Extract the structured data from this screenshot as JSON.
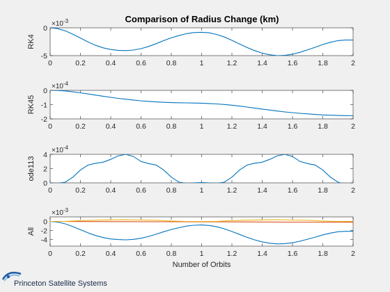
{
  "figure": {
    "title": "Comparison of Radius Change (km)",
    "background": "#f0f0f0",
    "axes_background": "#ffffff",
    "line_color": "#0072bd",
    "second_line_color": "#d95319",
    "third_line_color": "#edb120"
  },
  "logo": {
    "text": "Princeton Satellite Systems",
    "icon": "orbit-swoosh-icon"
  },
  "chart_data": [
    {
      "type": "line",
      "ylabel": "RK4",
      "exponent_label": "×10",
      "exponent_power": "-3",
      "xlim": [
        0,
        2
      ],
      "ylim": [
        -5,
        0
      ],
      "xticks": [
        0,
        0.2,
        0.4,
        0.6,
        0.8,
        1,
        1.2,
        1.4,
        1.6,
        1.8,
        2
      ],
      "xtick_labels": [
        "0",
        "0.2",
        "0.4",
        "0.6",
        "0.8",
        "1",
        "1.2",
        "1.4",
        "1.6",
        "1.8",
        "2"
      ],
      "yticks": [
        -5,
        0
      ],
      "ytick_labels": [
        "-5",
        "0"
      ],
      "series": [
        {
          "x": [
            0,
            0.05,
            0.1,
            0.15,
            0.2,
            0.25,
            0.3,
            0.35,
            0.4,
            0.45,
            0.5,
            0.55,
            0.6,
            0.65,
            0.7,
            0.75,
            0.8,
            0.85,
            0.9,
            0.95,
            1.0,
            1.05,
            1.1,
            1.15,
            1.2,
            1.25,
            1.3,
            1.35,
            1.4,
            1.45,
            1.5,
            1.55,
            1.6,
            1.65,
            1.7,
            1.75,
            1.8,
            1.85,
            1.9,
            1.95,
            2.0
          ],
          "y": [
            0,
            -0.15,
            -0.55,
            -1.15,
            -1.85,
            -2.55,
            -3.15,
            -3.6,
            -3.9,
            -4.05,
            -4.1,
            -4.0,
            -3.75,
            -3.35,
            -2.85,
            -2.3,
            -1.8,
            -1.4,
            -1.05,
            -0.85,
            -0.8,
            -0.9,
            -1.2,
            -1.65,
            -2.25,
            -2.9,
            -3.55,
            -4.1,
            -4.55,
            -4.85,
            -5.0,
            -4.95,
            -4.75,
            -4.4,
            -3.95,
            -3.5,
            -3.0,
            -2.6,
            -2.3,
            -2.2,
            -2.2
          ]
        }
      ]
    },
    {
      "type": "line",
      "ylabel": "RK45",
      "exponent_label": "×10",
      "exponent_power": "-4",
      "xlim": [
        0,
        2
      ],
      "ylim": [
        -2,
        0
      ],
      "xticks": [
        0,
        0.2,
        0.4,
        0.6,
        0.8,
        1,
        1.2,
        1.4,
        1.6,
        1.8,
        2
      ],
      "xtick_labels": [
        "0",
        "0.2",
        "0.4",
        "0.6",
        "0.8",
        "1",
        "1.2",
        "1.4",
        "1.6",
        "1.8",
        "2"
      ],
      "yticks": [
        -2,
        -1,
        0
      ],
      "ytick_labels": [
        "-2",
        "-1",
        "0"
      ],
      "series": [
        {
          "x": [
            0,
            0.05,
            0.1,
            0.15,
            0.2,
            0.25,
            0.3,
            0.35,
            0.4,
            0.45,
            0.5,
            0.55,
            0.6,
            0.65,
            0.7,
            0.75,
            0.8,
            0.85,
            0.9,
            0.95,
            1.0,
            1.05,
            1.1,
            1.15,
            1.2,
            1.25,
            1.3,
            1.35,
            1.4,
            1.45,
            1.5,
            1.55,
            1.6,
            1.65,
            1.7,
            1.75,
            1.8,
            1.85,
            1.9,
            1.95,
            2.0
          ],
          "y": [
            0,
            -0.01,
            -0.04,
            -0.1,
            -0.17,
            -0.25,
            -0.33,
            -0.41,
            -0.49,
            -0.56,
            -0.62,
            -0.68,
            -0.73,
            -0.77,
            -0.81,
            -0.84,
            -0.86,
            -0.87,
            -0.88,
            -0.89,
            -0.9,
            -0.92,
            -0.95,
            -0.99,
            -1.04,
            -1.1,
            -1.17,
            -1.24,
            -1.31,
            -1.38,
            -1.45,
            -1.51,
            -1.56,
            -1.61,
            -1.65,
            -1.69,
            -1.72,
            -1.74,
            -1.76,
            -1.77,
            -1.78
          ]
        }
      ]
    },
    {
      "type": "line",
      "ylabel": "ode113",
      "exponent_label": "×10",
      "exponent_power": "-4",
      "xlim": [
        0,
        2
      ],
      "ylim": [
        0,
        4
      ],
      "xticks": [
        0,
        0.2,
        0.4,
        0.6,
        0.8,
        1,
        1.2,
        1.4,
        1.6,
        1.8,
        2
      ],
      "xtick_labels": [
        "0",
        "0.2",
        "0.4",
        "0.6",
        "0.8",
        "1",
        "1.2",
        "1.4",
        "1.6",
        "1.8",
        "2"
      ],
      "yticks": [
        0,
        2,
        4
      ],
      "ytick_labels": [
        "0",
        "2",
        "4"
      ],
      "series": [
        {
          "x": [
            0,
            0.05,
            0.1,
            0.15,
            0.2,
            0.25,
            0.3,
            0.35,
            0.4,
            0.45,
            0.5,
            0.55,
            0.6,
            0.65,
            0.7,
            0.75,
            0.8,
            0.85,
            0.9,
            0.95,
            1.0,
            1.05,
            1.1,
            1.15,
            1.2,
            1.25,
            1.3,
            1.35,
            1.4,
            1.45,
            1.5,
            1.55,
            1.6,
            1.65,
            1.7,
            1.75,
            1.8,
            1.85,
            1.9,
            1.95,
            2.0
          ],
          "y": [
            0,
            -0.05,
            0.1,
            0.8,
            1.8,
            2.5,
            2.75,
            2.9,
            3.3,
            3.8,
            4.0,
            3.7,
            3.0,
            2.7,
            2.5,
            1.8,
            0.8,
            0.1,
            -0.05,
            0.0,
            0.05,
            0.0,
            -0.05,
            0.1,
            0.8,
            1.8,
            2.5,
            2.75,
            2.9,
            3.3,
            3.8,
            4.0,
            3.7,
            3.0,
            2.7,
            2.5,
            1.8,
            0.8,
            0.1,
            -0.2,
            -0.1
          ]
        }
      ]
    },
    {
      "type": "line",
      "ylabel": "All",
      "xlabel": "Number of Orbits",
      "exponent_label": "×10",
      "exponent_power": "-3",
      "xlim": [
        0,
        2
      ],
      "ylim": [
        -5.5,
        1
      ],
      "xticks": [
        0,
        0.2,
        0.4,
        0.6,
        0.8,
        1,
        1.2,
        1.4,
        1.6,
        1.8,
        2
      ],
      "xtick_labels": [
        "0",
        "0.2",
        "0.4",
        "0.6",
        "0.8",
        "1",
        "1.2",
        "1.4",
        "1.6",
        "1.8",
        "2"
      ],
      "yticks": [
        -4,
        -2,
        0
      ],
      "ytick_labels": [
        "-4",
        "-2",
        "0"
      ],
      "series": [
        {
          "x": [
            0,
            0.05,
            0.1,
            0.15,
            0.2,
            0.25,
            0.3,
            0.35,
            0.4,
            0.45,
            0.5,
            0.55,
            0.6,
            0.65,
            0.7,
            0.75,
            0.8,
            0.85,
            0.9,
            0.95,
            1.0,
            1.05,
            1.1,
            1.15,
            1.2,
            1.25,
            1.3,
            1.35,
            1.4,
            1.45,
            1.5,
            1.55,
            1.6,
            1.65,
            1.7,
            1.75,
            1.8,
            1.85,
            1.9,
            1.95,
            2.0
          ],
          "y": [
            0,
            -0.15,
            -0.55,
            -1.15,
            -1.85,
            -2.55,
            -3.15,
            -3.6,
            -3.9,
            -4.05,
            -4.1,
            -4.0,
            -3.75,
            -3.35,
            -2.85,
            -2.3,
            -1.8,
            -1.4,
            -1.05,
            -0.85,
            -0.8,
            -0.9,
            -1.2,
            -1.65,
            -2.25,
            -2.9,
            -3.55,
            -4.1,
            -4.55,
            -4.85,
            -5.0,
            -4.95,
            -4.75,
            -4.4,
            -3.95,
            -3.5,
            -3.0,
            -2.6,
            -2.3,
            -2.2,
            -2.2
          ]
        },
        {
          "x": [
            0,
            0.25,
            0.5,
            0.75,
            1.0,
            1.25,
            1.5,
            1.75,
            2.0
          ],
          "y": [
            0,
            -0.03,
            -0.06,
            -0.08,
            -0.09,
            -0.11,
            -0.14,
            -0.16,
            -0.18
          ]
        },
        {
          "x": [
            0,
            0.1,
            0.2,
            0.3,
            0.4,
            0.5,
            0.6,
            0.7,
            0.8,
            0.9,
            1.0,
            1.1,
            1.2,
            1.3,
            1.4,
            1.5,
            1.6,
            1.7,
            1.8,
            1.9,
            2.0
          ],
          "y": [
            0,
            0.01,
            0.18,
            0.28,
            0.33,
            0.4,
            0.3,
            0.26,
            0.08,
            0.0,
            0.0,
            0.01,
            0.18,
            0.28,
            0.33,
            0.4,
            0.3,
            0.26,
            0.08,
            -0.02,
            -0.01
          ]
        }
      ]
    }
  ]
}
